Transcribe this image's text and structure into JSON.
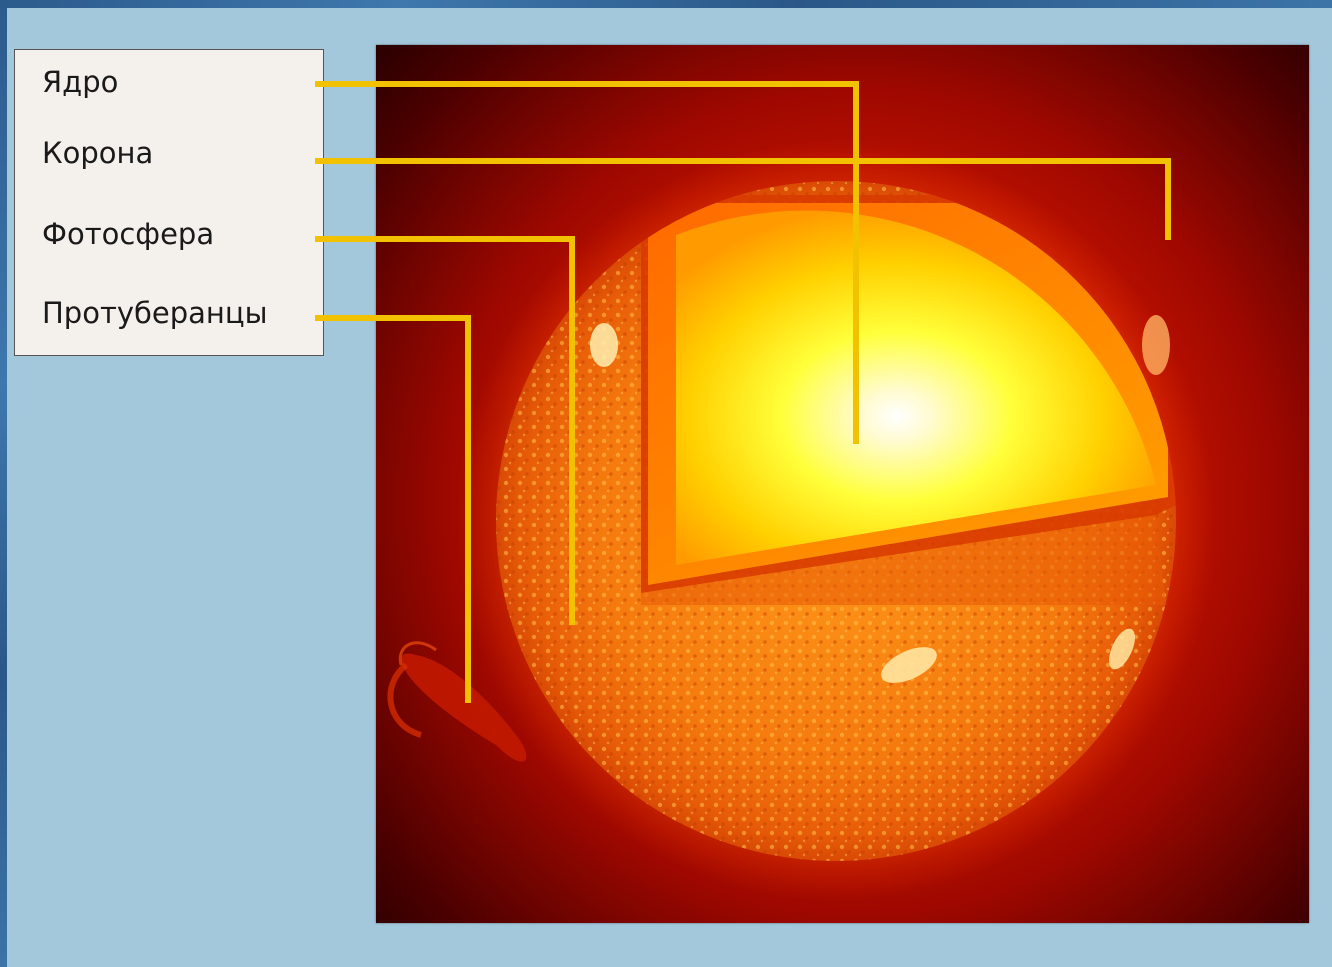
{
  "legend": {
    "items": [
      {
        "label": "Ядро"
      },
      {
        "label": "Корона"
      },
      {
        "label": "Фотосфера"
      },
      {
        "label": "Протуберанцы"
      }
    ]
  },
  "colors": {
    "background": "#a3c8db",
    "leader_line": "#f2c200",
    "legend_fill": "#f4f1ec"
  }
}
